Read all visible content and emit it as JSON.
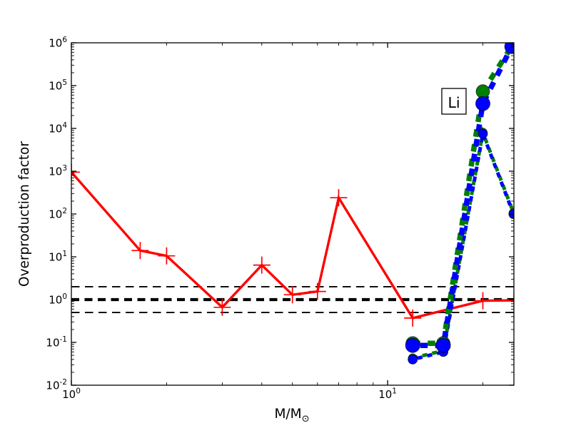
{
  "figure": {
    "background": "#ffffff",
    "ylabel": "Overproduction factor",
    "xlabel_main": "M/M",
    "xlabel_sub": "⊙",
    "annotation": {
      "text": "Li"
    }
  },
  "chart_data": {
    "type": "line",
    "title": "",
    "xlabel": "M/M_sun",
    "ylabel": "Overproduction factor",
    "xscale": "log",
    "yscale": "log",
    "xlim": [
      1,
      25.1
    ],
    "ylim": [
      0.01,
      1000000
    ],
    "grid": false,
    "legend": "none",
    "x_tick_exponents": [
      0,
      1
    ],
    "y_tick_exponents": [
      6,
      5,
      4,
      3,
      2,
      1,
      0,
      -1,
      -2
    ],
    "x_minor_ticks": [
      2,
      3,
      4,
      5,
      6,
      7,
      8,
      9,
      20
    ],
    "annotation": {
      "text": "Li",
      "x": 16.2,
      "y": 40000
    },
    "hlines": [
      {
        "value": 2.0,
        "style": "dashed-thin",
        "color": "#000000"
      },
      {
        "value": 1.0,
        "style": "dashed-thick",
        "color": "#000000"
      },
      {
        "value": 0.5,
        "style": "dashed-thin",
        "color": "#000000"
      }
    ],
    "series": [
      {
        "name": "red-solid-plus",
        "color": "#ff0000",
        "style": "solid-plus-markers",
        "x": [
          1.0,
          1.65,
          2,
          3,
          4,
          5,
          6,
          7,
          12,
          20,
          25.1
        ],
        "y": [
          950,
          14,
          10.5,
          0.66,
          6.4,
          1.3,
          1.55,
          240,
          0.37,
          0.94,
          0.96
        ]
      },
      {
        "name": "green-thin-dashed-circles",
        "color": "#008000",
        "style": "thin-dashed-small-circles",
        "x": [
          12,
          15,
          20,
          25
        ],
        "y": [
          0.043,
          0.064,
          8000,
          107
        ]
      },
      {
        "name": "blue-thin-dashed-circles",
        "color": "#0000ff",
        "style": "thin-dashed-small-circles",
        "x": [
          12,
          15,
          20,
          25
        ],
        "y": [
          0.04,
          0.06,
          7500,
          100
        ]
      },
      {
        "name": "green-thick-dashed-circles",
        "color": "#008000",
        "style": "thick-dashed-big-circles",
        "x": [
          12,
          15,
          20,
          25.2
        ],
        "y": [
          0.095,
          0.095,
          73000,
          1050000
        ]
      },
      {
        "name": "blue-thick-dashed-circles",
        "color": "#0000ff",
        "style": "thick-dashed-big-circles",
        "x": [
          12,
          15,
          20,
          24.7
        ],
        "y": [
          0.085,
          0.085,
          38000,
          820000
        ]
      }
    ]
  }
}
